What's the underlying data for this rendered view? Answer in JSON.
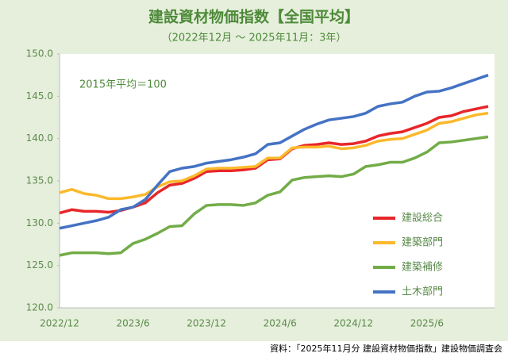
{
  "chart_data": {
    "type": "line",
    "title": "建設資材物価指数【全国平均】",
    "subtitle": "（2022年12月 ～ 2025年11月：3年）",
    "annotation": "2015年平均＝100",
    "source": "資料：「2025年11月分 建設資材物価指数」建設物価調査会",
    "categories": [
      "2022/12",
      null,
      null,
      null,
      null,
      null,
      "2023/6",
      null,
      null,
      null,
      null,
      null,
      "2023/12",
      null,
      null,
      null,
      null,
      null,
      "2024/6",
      null,
      null,
      null,
      null,
      null,
      "2024/12",
      null,
      null,
      null,
      null,
      null,
      "2025/6",
      null,
      null,
      null,
      null,
      null
    ],
    "ylim": [
      120,
      150
    ],
    "yticks": [
      {
        "value": 120,
        "label": "120.0"
      },
      {
        "value": 125,
        "label": "125.0"
      },
      {
        "value": 130,
        "label": "130.0"
      },
      {
        "value": 135,
        "label": "135.0"
      },
      {
        "value": 140,
        "label": "140.0"
      },
      {
        "value": 145,
        "label": "145.0"
      },
      {
        "value": 150,
        "label": "150.0"
      }
    ],
    "legend": "lower-right",
    "series": [
      {
        "name": "建設総合",
        "color": "#e8262a",
        "values": [
          131.2,
          131.6,
          131.4,
          131.4,
          131.3,
          131.5,
          131.9,
          132.4,
          133.6,
          134.5,
          134.7,
          135.3,
          136.1,
          136.2,
          136.2,
          136.3,
          136.5,
          137.5,
          137.6,
          138.8,
          139.2,
          139.3,
          139.5,
          139.3,
          139.4,
          139.7,
          140.3,
          140.6,
          140.8,
          141.3,
          141.8,
          142.5,
          142.7,
          143.2,
          143.5,
          143.8
        ]
      },
      {
        "name": "建築部門",
        "color": "#fbb92b",
        "values": [
          133.6,
          134.0,
          133.5,
          133.3,
          132.9,
          132.9,
          133.1,
          133.4,
          134.3,
          134.9,
          135.0,
          135.6,
          136.4,
          136.5,
          136.5,
          136.6,
          136.7,
          137.7,
          137.7,
          138.9,
          139.0,
          139.0,
          139.1,
          138.8,
          138.9,
          139.2,
          139.7,
          139.9,
          140.0,
          140.5,
          141.0,
          141.8,
          142.0,
          142.4,
          142.8,
          143.0
        ]
      },
      {
        "name": "建築補修",
        "color": "#72ac47",
        "values": [
          126.2,
          126.5,
          126.5,
          126.5,
          126.4,
          126.5,
          127.6,
          128.1,
          128.8,
          129.6,
          129.7,
          131.1,
          132.1,
          132.2,
          132.2,
          132.1,
          132.4,
          133.3,
          133.7,
          135.1,
          135.4,
          135.5,
          135.6,
          135.5,
          135.8,
          136.7,
          136.9,
          137.2,
          137.2,
          137.7,
          138.4,
          139.5,
          139.6,
          139.8,
          140.0,
          140.2
        ]
      },
      {
        "name": "土木部門",
        "color": "#4472c4",
        "values": [
          129.4,
          129.7,
          130.0,
          130.3,
          130.7,
          131.6,
          131.9,
          132.8,
          134.5,
          136.1,
          136.5,
          136.7,
          137.1,
          137.3,
          137.5,
          137.8,
          138.2,
          139.3,
          139.5,
          140.3,
          141.1,
          141.7,
          142.2,
          142.4,
          142.6,
          143.0,
          143.8,
          144.1,
          144.3,
          145.0,
          145.5,
          145.6,
          146.0,
          146.5,
          147.0,
          147.5
        ]
      }
    ]
  }
}
